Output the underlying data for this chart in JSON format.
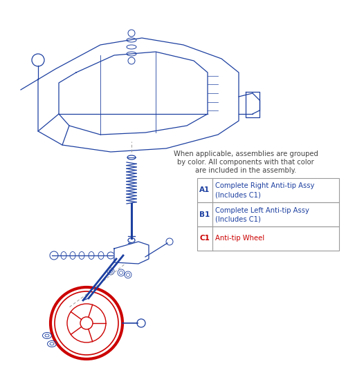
{
  "bg_color": "#ffffff",
  "blue": "#1c3fa0",
  "red": "#cc0000",
  "gray": "#999999",
  "note_text_line1": "When applicable, assemblies are grouped",
  "note_text_line2": "by color. All components with that color",
  "note_text_line3": "are included in the assembly.",
  "table_rows": [
    {
      "id": "A1",
      "id_color": "#1c3fa0",
      "desc1": "Complete Right Anti-tip Assy",
      "desc2": "(Includes C1)",
      "desc_color": "#1c3fa0"
    },
    {
      "id": "B1",
      "id_color": "#1c3fa0",
      "desc1": "Complete Left Anti-tip Assy",
      "desc2": "(Includes C1)",
      "desc_color": "#1c3fa0"
    },
    {
      "id": "C1",
      "id_color": "#cc0000",
      "desc1": "Anti-tip Wheel",
      "desc2": "",
      "desc_color": "#cc0000"
    }
  ],
  "figsize": [
    5.0,
    5.33
  ],
  "dpi": 100
}
